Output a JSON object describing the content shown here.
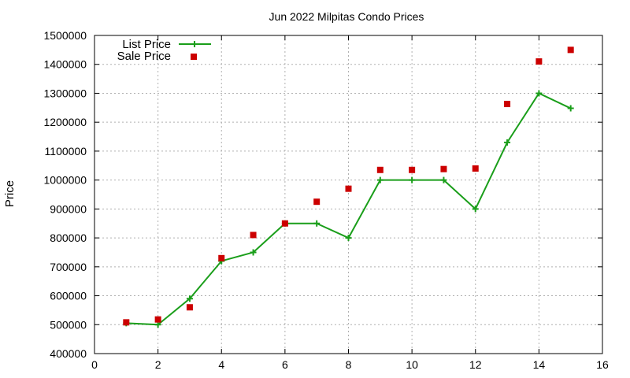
{
  "chart_data": {
    "type": "line",
    "title": "Jun 2022 Milpitas Condo Prices",
    "xlabel": "",
    "ylabel": "Price",
    "xlim": [
      0,
      16
    ],
    "ylim": [
      400000,
      1500000
    ],
    "x_ticks": [
      0,
      2,
      4,
      6,
      8,
      10,
      12,
      14,
      16
    ],
    "y_ticks": [
      400000,
      500000,
      600000,
      700000,
      800000,
      900000,
      1000000,
      1100000,
      1200000,
      1300000,
      1400000,
      1500000
    ],
    "grid": true,
    "legend_position": "top-left",
    "series": [
      {
        "name": "List Price",
        "style": "line-with-plus-markers",
        "color": "#1a9e1a",
        "x": [
          1,
          2,
          3,
          4,
          5,
          6,
          7,
          8,
          9,
          10,
          11,
          12,
          13,
          14,
          15
        ],
        "y": [
          505000,
          500000,
          590000,
          720000,
          750000,
          850000,
          850000,
          800000,
          1000000,
          1000000,
          1000000,
          900000,
          1130000,
          1300000,
          1248000
        ]
      },
      {
        "name": "Sale Price",
        "style": "square-markers",
        "color": "#cc0000",
        "x": [
          1,
          2,
          3,
          4,
          5,
          6,
          7,
          8,
          9,
          10,
          11,
          12,
          13,
          14,
          15
        ],
        "y": [
          508000,
          518000,
          560000,
          730000,
          810000,
          850000,
          925000,
          970000,
          1035000,
          1035000,
          1038000,
          1040000,
          1263000,
          1410000,
          1450000
        ]
      }
    ]
  }
}
